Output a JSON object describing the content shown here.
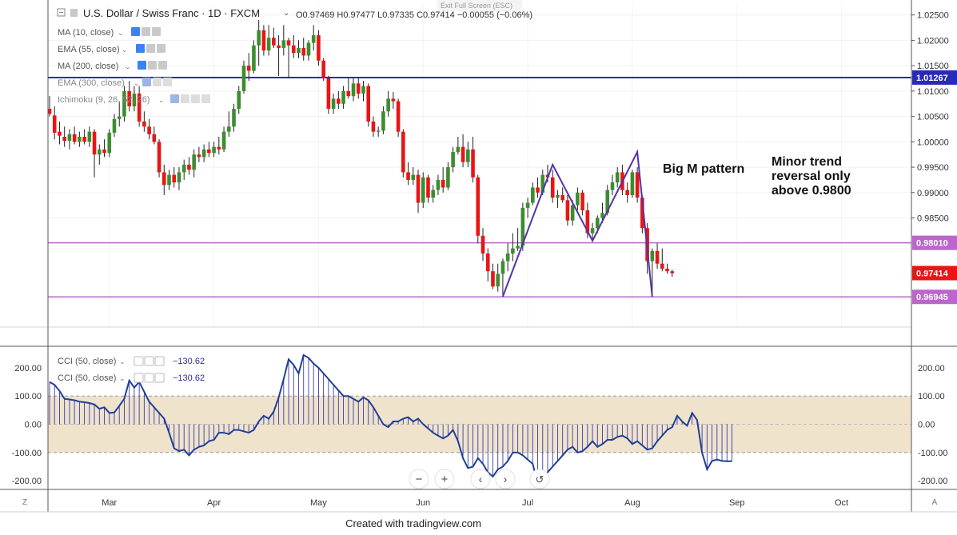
{
  "header": {
    "title": "U.S. Dollar / Swiss Franc · 1D · FXCM",
    "ohlc": "O0.97469  H0.97477  L0.97335  C0.97414  −0.00055 (−0.06%)",
    "exit_full_screen": "Exit Full Screen (ESC)"
  },
  "indicators": [
    {
      "label": "MA (10, close)"
    },
    {
      "label": "EMA (55, close)"
    },
    {
      "label": "MA (200, close)"
    },
    {
      "label": "EMA (300, close)"
    },
    {
      "label": "Ichimoku (9, 26, 52, 26)"
    }
  ],
  "cci_legend": [
    {
      "label": "CCI (50, close)",
      "value": "−130.62"
    },
    {
      "label": "CCI (50, close)",
      "value": "−130.62"
    }
  ],
  "annotations": {
    "pattern": "Big M pattern",
    "reversal_line1": "Minor trend",
    "reversal_line2": "reversal only",
    "reversal_line3": "above 0.9800"
  },
  "footer": {
    "credit": "Created with tradingview.com"
  },
  "corner": {
    "left": "Z",
    "right": "A"
  },
  "colors": {
    "up": "#3c8d2f",
    "down": "#e81515",
    "blue_line": "#2a2ab8",
    "purple_line": "#bb66cc",
    "m_pattern": "#5533aa",
    "cci_line": "#1f3f99",
    "cci_band": "#efe3cc"
  },
  "chart_data": [
    {
      "type": "candlestick",
      "symbol": "USDCHF",
      "timeframe": "1D",
      "ylim": [
        0.9635,
        1.027
      ],
      "y_ticks": [
        1.025,
        1.02,
        1.015,
        1.01,
        1.005,
        1.0,
        0.995,
        0.99,
        0.985
      ],
      "y_tick_labels": [
        "1.02500",
        "1.02000",
        "1.01500",
        "1.01000",
        "1.00500",
        "1.00000",
        "0.99500",
        "0.99000",
        "0.98500"
      ],
      "price_tags": [
        {
          "label": "1.01267",
          "value": 1.01267,
          "color": "#2a2ab8"
        },
        {
          "label": "0.98010",
          "value": 0.9801,
          "color": "#bb66cc"
        },
        {
          "label": "0.97414",
          "value": 0.97414,
          "color": "#e81515"
        },
        {
          "label": "0.96945",
          "value": 0.96945,
          "color": "#bb66cc"
        }
      ],
      "x_labels": [
        "Mar",
        "Apr",
        "May",
        "Jun",
        "Jul",
        "Aug",
        "Sep",
        "Oct"
      ],
      "x_label_index": [
        12,
        33,
        54,
        75,
        96,
        117,
        138,
        159
      ],
      "horizontal_lines": [
        {
          "value": 1.01267,
          "color": "#2a2ab8"
        },
        {
          "value": 0.9801,
          "color": "#bb66cc"
        },
        {
          "value": 0.96945,
          "color": "#bb66cc"
        }
      ],
      "m_pattern": [
        {
          "i": 91,
          "value": 0.9695
        },
        {
          "i": 101,
          "value": 0.9955
        },
        {
          "i": 109,
          "value": 0.9805
        },
        {
          "i": 118,
          "value": 0.998
        },
        {
          "i": 121,
          "value": 0.9695
        }
      ],
      "bars": [
        {
          "o": 1.0065,
          "h": 1.009,
          "l": 1.005,
          "c": 1.0055
        },
        {
          "o": 1.0052,
          "h": 1.007,
          "l": 1.0005,
          "c": 1.0018
        },
        {
          "o": 1.002,
          "h": 1.004,
          "l": 0.9995,
          "c": 1.0012
        },
        {
          "o": 1.001,
          "h": 1.003,
          "l": 0.999,
          "c": 1.0002
        },
        {
          "o": 1.0002,
          "h": 1.0025,
          "l": 0.9985,
          "c": 1.0015
        },
        {
          "o": 1.0015,
          "h": 1.003,
          "l": 0.9995,
          "c": 1.0
        },
        {
          "o": 1.0,
          "h": 1.002,
          "l": 0.999,
          "c": 1.001
        },
        {
          "o": 1.001,
          "h": 1.0025,
          "l": 0.9995,
          "c": 1.0
        },
        {
          "o": 1.0,
          "h": 1.003,
          "l": 0.999,
          "c": 1.002
        },
        {
          "o": 1.002,
          "h": 1.0025,
          "l": 0.993,
          "c": 0.9975
        },
        {
          "o": 0.9975,
          "h": 0.9995,
          "l": 0.9955,
          "c": 0.9985
        },
        {
          "o": 0.9985,
          "h": 1.0005,
          "l": 0.997,
          "c": 0.9978
        },
        {
          "o": 0.9978,
          "h": 1.0025,
          "l": 0.997,
          "c": 1.0018
        },
        {
          "o": 1.0018,
          "h": 1.0055,
          "l": 1.001,
          "c": 1.0045
        },
        {
          "o": 1.0045,
          "h": 1.008,
          "l": 1.003,
          "c": 1.005
        },
        {
          "o": 1.005,
          "h": 1.011,
          "l": 1.004,
          "c": 1.01
        },
        {
          "o": 1.01,
          "h": 1.012,
          "l": 1.006,
          "c": 1.007
        },
        {
          "o": 1.007,
          "h": 1.011,
          "l": 1.006,
          "c": 1.0095
        },
        {
          "o": 1.0095,
          "h": 1.011,
          "l": 1.003,
          "c": 1.004
        },
        {
          "o": 1.004,
          "h": 1.006,
          "l": 1.002,
          "c": 1.003
        },
        {
          "o": 1.003,
          "h": 1.0045,
          "l": 1.0005,
          "c": 1.0015
        },
        {
          "o": 1.0015,
          "h": 1.003,
          "l": 0.9995,
          "c": 1.0
        },
        {
          "o": 1.0,
          "h": 1.0005,
          "l": 0.993,
          "c": 0.994
        },
        {
          "o": 0.994,
          "h": 0.9955,
          "l": 0.9895,
          "c": 0.9915
        },
        {
          "o": 0.9915,
          "h": 0.9945,
          "l": 0.9905,
          "c": 0.9935
        },
        {
          "o": 0.9935,
          "h": 0.995,
          "l": 0.991,
          "c": 0.992
        },
        {
          "o": 0.992,
          "h": 0.995,
          "l": 0.9905,
          "c": 0.994
        },
        {
          "o": 0.994,
          "h": 0.9965,
          "l": 0.9925,
          "c": 0.9955
        },
        {
          "o": 0.9955,
          "h": 0.997,
          "l": 0.9935,
          "c": 0.9945
        },
        {
          "o": 0.9945,
          "h": 0.9985,
          "l": 0.993,
          "c": 0.9975
        },
        {
          "o": 0.9975,
          "h": 0.999,
          "l": 0.996,
          "c": 0.997
        },
        {
          "o": 0.997,
          "h": 0.9995,
          "l": 0.996,
          "c": 0.9985
        },
        {
          "o": 0.9985,
          "h": 1.0,
          "l": 0.997,
          "c": 0.9978
        },
        {
          "o": 0.9978,
          "h": 1.0,
          "l": 0.997,
          "c": 0.999
        },
        {
          "o": 0.999,
          "h": 1.001,
          "l": 0.9975,
          "c": 0.9985
        },
        {
          "o": 0.9985,
          "h": 1.003,
          "l": 0.998,
          "c": 1.002
        },
        {
          "o": 1.002,
          "h": 1.006,
          "l": 1.001,
          "c": 1.003
        },
        {
          "o": 1.003,
          "h": 1.0075,
          "l": 1.002,
          "c": 1.0065
        },
        {
          "o": 1.0065,
          "h": 1.011,
          "l": 1.0055,
          "c": 1.01
        },
        {
          "o": 1.01,
          "h": 1.016,
          "l": 1.0095,
          "c": 1.015
        },
        {
          "o": 1.015,
          "h": 1.0175,
          "l": 1.012,
          "c": 1.014
        },
        {
          "o": 1.014,
          "h": 1.02,
          "l": 1.0135,
          "c": 1.019
        },
        {
          "o": 1.019,
          "h": 1.024,
          "l": 1.015,
          "c": 1.022
        },
        {
          "o": 1.022,
          "h": 1.023,
          "l": 1.017,
          "c": 1.018
        },
        {
          "o": 1.018,
          "h": 1.023,
          "l": 1.017,
          "c": 1.0205
        },
        {
          "o": 1.0205,
          "h": 1.0225,
          "l": 1.0185,
          "c": 1.019
        },
        {
          "o": 1.019,
          "h": 1.021,
          "l": 1.013,
          "c": 1.0185
        },
        {
          "o": 1.0185,
          "h": 1.023,
          "l": 1.017,
          "c": 1.02
        },
        {
          "o": 1.02,
          "h": 1.0205,
          "l": 1.0125,
          "c": 1.019
        },
        {
          "o": 1.019,
          "h": 1.021,
          "l": 1.0165,
          "c": 1.0175
        },
        {
          "o": 1.0175,
          "h": 1.02,
          "l": 1.0165,
          "c": 1.0185
        },
        {
          "o": 1.0185,
          "h": 1.0205,
          "l": 1.016,
          "c": 1.017
        },
        {
          "o": 1.017,
          "h": 1.02,
          "l": 1.016,
          "c": 1.0195
        },
        {
          "o": 1.0195,
          "h": 1.023,
          "l": 1.018,
          "c": 1.021
        },
        {
          "o": 1.021,
          "h": 1.022,
          "l": 1.015,
          "c": 1.016
        },
        {
          "o": 1.016,
          "h": 1.0165,
          "l": 1.012,
          "c": 1.0125
        },
        {
          "o": 1.0125,
          "h": 1.013,
          "l": 1.0055,
          "c": 1.0065
        },
        {
          "o": 1.0065,
          "h": 1.0095,
          "l": 1.0055,
          "c": 1.0085
        },
        {
          "o": 1.0085,
          "h": 1.01,
          "l": 1.0065,
          "c": 1.0075
        },
        {
          "o": 1.0075,
          "h": 1.011,
          "l": 1.0065,
          "c": 1.01
        },
        {
          "o": 1.01,
          "h": 1.0125,
          "l": 1.0085,
          "c": 1.009
        },
        {
          "o": 1.009,
          "h": 1.0125,
          "l": 1.008,
          "c": 1.0115
        },
        {
          "o": 1.0115,
          "h": 1.0125,
          "l": 1.0085,
          "c": 1.0095
        },
        {
          "o": 1.0095,
          "h": 1.012,
          "l": 1.008,
          "c": 1.011
        },
        {
          "o": 1.011,
          "h": 1.0115,
          "l": 1.003,
          "c": 1.004
        },
        {
          "o": 1.004,
          "h": 1.005,
          "l": 1.001,
          "c": 1.002
        },
        {
          "o": 1.002,
          "h": 1.003,
          "l": 1.001,
          "c": 1.0022
        },
        {
          "o": 1.0022,
          "h": 1.007,
          "l": 1.0015,
          "c": 1.006
        },
        {
          "o": 1.006,
          "h": 1.01,
          "l": 1.005,
          "c": 1.0085
        },
        {
          "o": 1.0085,
          "h": 1.0098,
          "l": 1.0065,
          "c": 1.008
        },
        {
          "o": 1.008,
          "h": 1.0085,
          "l": 1.001,
          "c": 1.002
        },
        {
          "o": 1.002,
          "h": 1.0025,
          "l": 0.993,
          "c": 0.994
        },
        {
          "o": 0.994,
          "h": 0.996,
          "l": 0.9915,
          "c": 0.9925
        },
        {
          "o": 0.9925,
          "h": 0.995,
          "l": 0.9915,
          "c": 0.9935
        },
        {
          "o": 0.9935,
          "h": 0.9945,
          "l": 0.986,
          "c": 0.988
        },
        {
          "o": 0.988,
          "h": 0.994,
          "l": 0.987,
          "c": 0.993
        },
        {
          "o": 0.993,
          "h": 0.9935,
          "l": 0.988,
          "c": 0.989
        },
        {
          "o": 0.989,
          "h": 0.9915,
          "l": 0.988,
          "c": 0.9905
        },
        {
          "o": 0.9905,
          "h": 0.9935,
          "l": 0.9895,
          "c": 0.9925
        },
        {
          "o": 0.9925,
          "h": 0.995,
          "l": 0.99,
          "c": 0.991
        },
        {
          "o": 0.991,
          "h": 0.996,
          "l": 0.9905,
          "c": 0.995
        },
        {
          "o": 0.995,
          "h": 0.999,
          "l": 0.994,
          "c": 0.998
        },
        {
          "o": 0.998,
          "h": 1.001,
          "l": 0.9975,
          "c": 0.999
        },
        {
          "o": 0.999,
          "h": 1.0015,
          "l": 0.995,
          "c": 0.996
        },
        {
          "o": 0.996,
          "h": 1.0,
          "l": 0.995,
          "c": 0.9985
        },
        {
          "o": 0.9985,
          "h": 1.001,
          "l": 0.992,
          "c": 0.993
        },
        {
          "o": 0.993,
          "h": 0.9935,
          "l": 0.98,
          "c": 0.9815
        },
        {
          "o": 0.9815,
          "h": 0.983,
          "l": 0.9765,
          "c": 0.978
        },
        {
          "o": 0.978,
          "h": 0.979,
          "l": 0.9725,
          "c": 0.9745
        },
        {
          "o": 0.9745,
          "h": 0.976,
          "l": 0.971,
          "c": 0.9715
        },
        {
          "o": 0.9715,
          "h": 0.976,
          "l": 0.9705,
          "c": 0.974
        },
        {
          "o": 0.974,
          "h": 0.977,
          "l": 0.9695,
          "c": 0.9765
        },
        {
          "o": 0.9765,
          "h": 0.98,
          "l": 0.9745,
          "c": 0.978
        },
        {
          "o": 0.978,
          "h": 0.982,
          "l": 0.9765,
          "c": 0.979
        },
        {
          "o": 0.979,
          "h": 0.983,
          "l": 0.9785,
          "c": 0.9795
        },
        {
          "o": 0.9795,
          "h": 0.988,
          "l": 0.9785,
          "c": 0.987
        },
        {
          "o": 0.987,
          "h": 0.989,
          "l": 0.985,
          "c": 0.988
        },
        {
          "o": 0.988,
          "h": 0.992,
          "l": 0.9875,
          "c": 0.991
        },
        {
          "o": 0.991,
          "h": 0.993,
          "l": 0.989,
          "c": 0.99
        },
        {
          "o": 0.99,
          "h": 0.9945,
          "l": 0.9895,
          "c": 0.9935
        },
        {
          "o": 0.9935,
          "h": 0.9955,
          "l": 0.992,
          "c": 0.993
        },
        {
          "o": 0.993,
          "h": 0.9945,
          "l": 0.988,
          "c": 0.989
        },
        {
          "o": 0.989,
          "h": 0.9905,
          "l": 0.987,
          "c": 0.9895
        },
        {
          "o": 0.9895,
          "h": 0.991,
          "l": 0.988,
          "c": 0.9885
        },
        {
          "o": 0.9885,
          "h": 0.9895,
          "l": 0.9835,
          "c": 0.9845
        },
        {
          "o": 0.9845,
          "h": 0.9885,
          "l": 0.9835,
          "c": 0.9875
        },
        {
          "o": 0.9875,
          "h": 0.991,
          "l": 0.9865,
          "c": 0.99
        },
        {
          "o": 0.99,
          "h": 0.9905,
          "l": 0.9855,
          "c": 0.9865
        },
        {
          "o": 0.9865,
          "h": 0.988,
          "l": 0.981,
          "c": 0.982
        },
        {
          "o": 0.982,
          "h": 0.984,
          "l": 0.9805,
          "c": 0.983
        },
        {
          "o": 0.983,
          "h": 0.9855,
          "l": 0.982,
          "c": 0.985
        },
        {
          "o": 0.985,
          "h": 0.988,
          "l": 0.984,
          "c": 0.986
        },
        {
          "o": 0.986,
          "h": 0.9915,
          "l": 0.9855,
          "c": 0.9905
        },
        {
          "o": 0.9905,
          "h": 0.9935,
          "l": 0.9895,
          "c": 0.992
        },
        {
          "o": 0.992,
          "h": 0.995,
          "l": 0.991,
          "c": 0.994
        },
        {
          "o": 0.994,
          "h": 0.9955,
          "l": 0.9895,
          "c": 0.9905
        },
        {
          "o": 0.9905,
          "h": 0.992,
          "l": 0.988,
          "c": 0.9895
        },
        {
          "o": 0.9895,
          "h": 0.9945,
          "l": 0.989,
          "c": 0.994
        },
        {
          "o": 0.994,
          "h": 0.995,
          "l": 0.988,
          "c": 0.989
        },
        {
          "o": 0.989,
          "h": 0.9895,
          "l": 0.982,
          "c": 0.983
        },
        {
          "o": 0.983,
          "h": 0.984,
          "l": 0.974,
          "c": 0.9765
        },
        {
          "o": 0.9765,
          "h": 0.979,
          "l": 0.9695,
          "c": 0.9785
        },
        {
          "o": 0.9785,
          "h": 0.98,
          "l": 0.975,
          "c": 0.976
        },
        {
          "o": 0.976,
          "h": 0.979,
          "l": 0.9745,
          "c": 0.975
        },
        {
          "o": 0.975,
          "h": 0.976,
          "l": 0.974,
          "c": 0.9745
        },
        {
          "o": 0.9745,
          "h": 0.9748,
          "l": 0.9734,
          "c": 0.9741
        }
      ]
    },
    {
      "type": "line",
      "name": "CCI (50, close)",
      "ylim": [
        -225,
        262
      ],
      "y_ticks": [
        200,
        100,
        0,
        -100,
        -200
      ],
      "y_tick_labels": [
        "200.00",
        "100.00",
        "0.00",
        "-100.00",
        "-200.00"
      ],
      "band": [
        -100,
        100
      ],
      "values": [
        150,
        140,
        118,
        90,
        88,
        85,
        80,
        78,
        75,
        70,
        55,
        60,
        40,
        42,
        65,
        90,
        155,
        130,
        150,
        115,
        80,
        60,
        40,
        20,
        -30,
        -85,
        -95,
        -90,
        -110,
        -90,
        -80,
        -75,
        -60,
        -55,
        -30,
        -30,
        -35,
        -20,
        -20,
        -25,
        -30,
        -20,
        10,
        30,
        20,
        45,
        95,
        160,
        230,
        210,
        180,
        245,
        235,
        215,
        200,
        180,
        160,
        140,
        120,
        100,
        100,
        90,
        80,
        95,
        85,
        60,
        30,
        0,
        -10,
        10,
        10,
        20,
        25,
        10,
        20,
        0,
        -15,
        -30,
        -40,
        -50,
        -40,
        -20,
        -60,
        -120,
        -155,
        -150,
        -120,
        -140,
        -170,
        -185,
        -160,
        -150,
        -130,
        -100,
        -100,
        -110,
        -125,
        -140,
        -210,
        -190,
        -170,
        -150,
        -130,
        -110,
        -90,
        -80,
        -100,
        -95,
        -80,
        -60,
        -80,
        -70,
        -55,
        -55,
        -45,
        -40,
        -50,
        -70,
        -60,
        -75,
        -90,
        -85,
        -60,
        -40,
        -20,
        -10,
        30,
        10,
        -5,
        40,
        15,
        -100,
        -160,
        -130,
        -125,
        -130,
        -131,
        -130.62
      ]
    }
  ]
}
